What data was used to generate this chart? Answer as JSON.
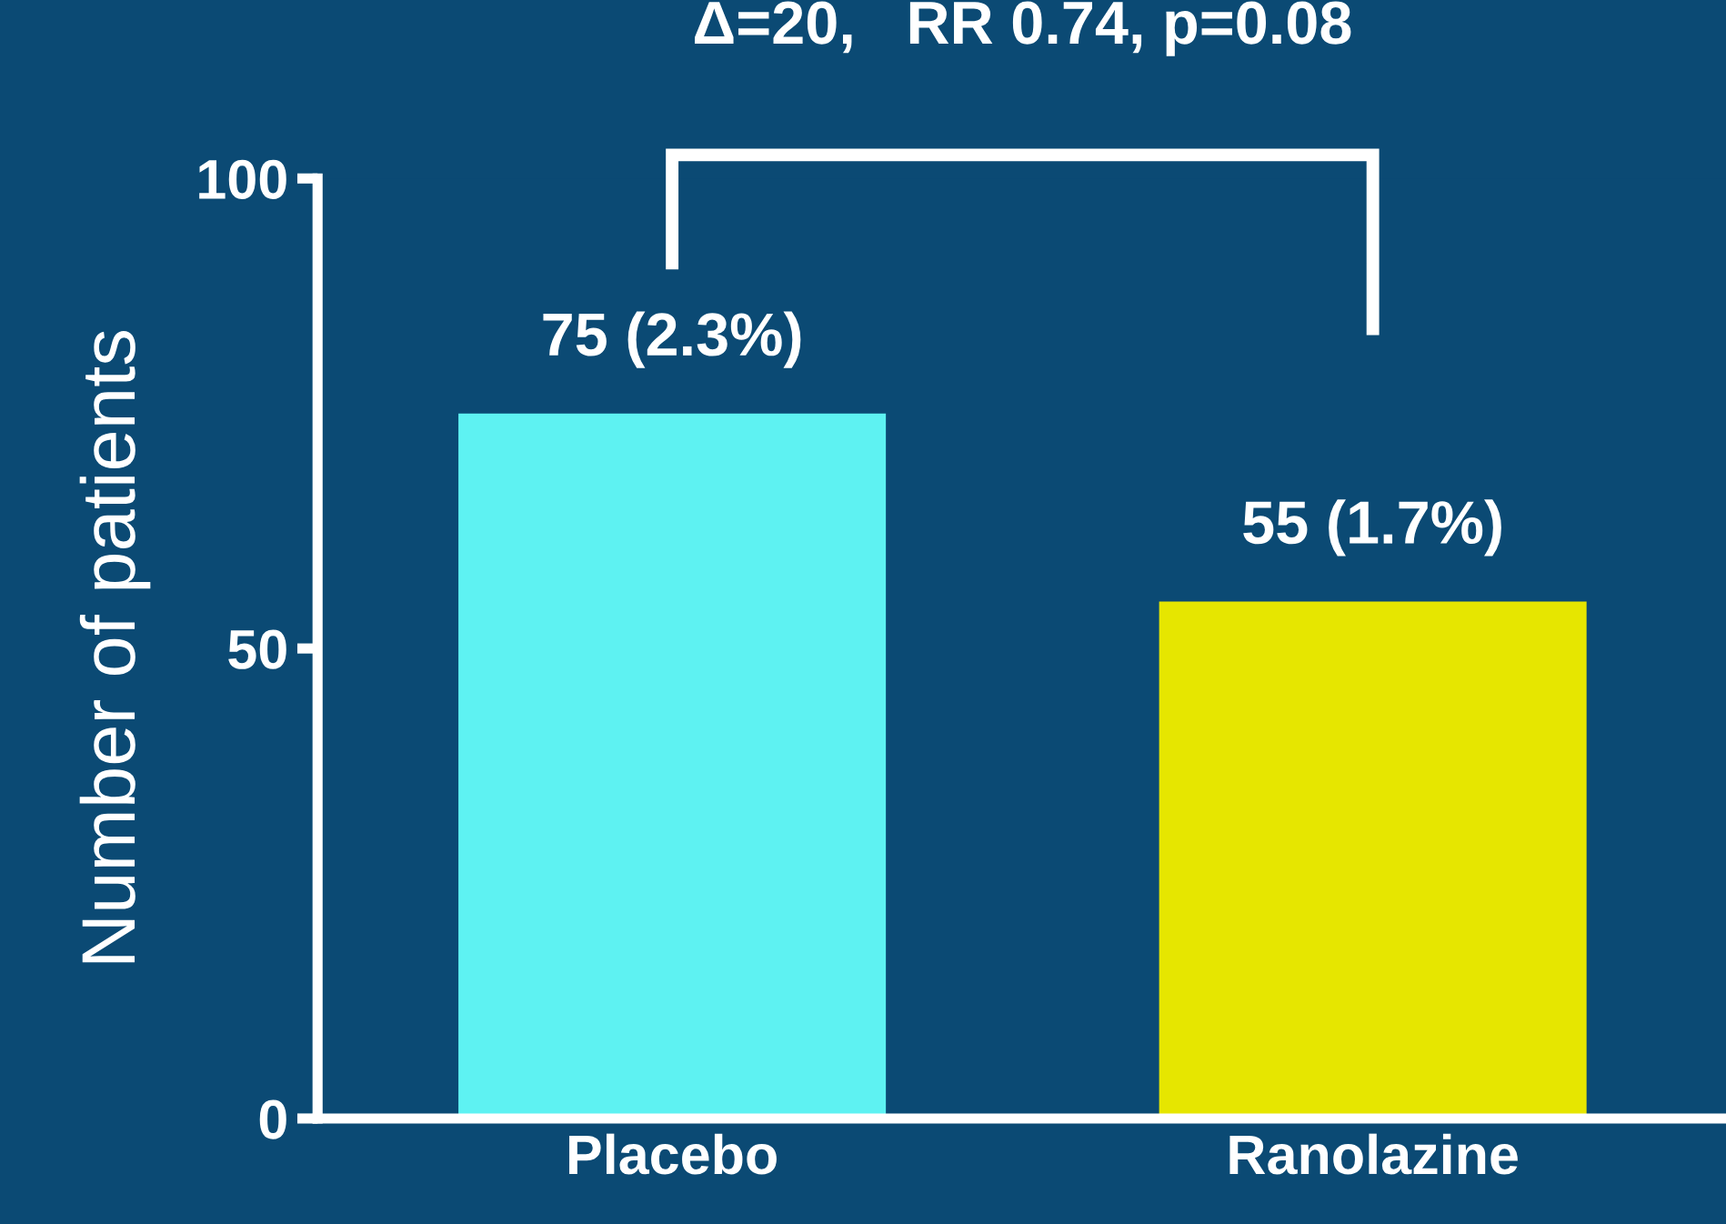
{
  "chart_data": {
    "type": "bar",
    "ylabel": "Number of patients",
    "categories": [
      "Placebo",
      "Ranolazine"
    ],
    "values": [
      75,
      55
    ],
    "colors": [
      "#5ef2f2",
      "#e6e600"
    ],
    "value_labels": [
      "75 (2.3%)",
      "55 (1.7%)"
    ],
    "ylim": [
      0,
      100
    ],
    "yticks": [
      0,
      50,
      100
    ],
    "grid": false,
    "legend": false,
    "annotations": [
      "Δ=20,   RR 0.74, p=0.08"
    ]
  }
}
